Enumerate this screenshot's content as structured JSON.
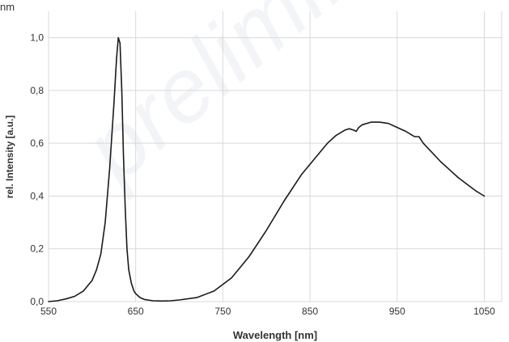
{
  "corner_text": "nm",
  "watermark": "preliminary",
  "chart_data": {
    "type": "line",
    "title": "",
    "xlabel": "Wavelength [nm]",
    "ylabel": "rel. Intensity [a.u.]",
    "xlim": [
      550,
      1070
    ],
    "ylim": [
      0,
      1.1
    ],
    "xticks": [
      550,
      650,
      750,
      850,
      950,
      1050
    ],
    "xtick_labels": [
      "550",
      "650",
      "750",
      "850",
      "950",
      "1050"
    ],
    "yticks": [
      0,
      0.2,
      0.4,
      0.6,
      0.8,
      1.0
    ],
    "ytick_labels": [
      "0,0",
      "0,2",
      "0,4",
      "0,6",
      "0,8",
      "1,0"
    ],
    "grid": true,
    "legend": "none",
    "line_color": "#1a1a1a",
    "series": [
      {
        "x": [
          550,
          560,
          570,
          580,
          590,
          600,
          605,
          610,
          615,
          620,
          625,
          628,
          630,
          632,
          634,
          636,
          638,
          640,
          642,
          645,
          648,
          650,
          655,
          660,
          670,
          680,
          690,
          700,
          720,
          740,
          760,
          780,
          800,
          820,
          840,
          860,
          870,
          880,
          890,
          895,
          900,
          903,
          906,
          910,
          920,
          930,
          940,
          950,
          960,
          970,
          975,
          980,
          990,
          1000,
          1010,
          1020,
          1030,
          1040,
          1050
        ],
        "y": [
          0,
          0.003,
          0.01,
          0.02,
          0.04,
          0.08,
          0.12,
          0.18,
          0.3,
          0.5,
          0.75,
          0.92,
          1.0,
          0.98,
          0.8,
          0.55,
          0.35,
          0.2,
          0.12,
          0.07,
          0.04,
          0.03,
          0.015,
          0.008,
          0.003,
          0.002,
          0.003,
          0.006,
          0.015,
          0.04,
          0.09,
          0.17,
          0.27,
          0.38,
          0.48,
          0.56,
          0.6,
          0.63,
          0.65,
          0.655,
          0.65,
          0.645,
          0.66,
          0.67,
          0.68,
          0.68,
          0.675,
          0.66,
          0.645,
          0.625,
          0.625,
          0.6,
          0.565,
          0.53,
          0.5,
          0.47,
          0.445,
          0.42,
          0.4
        ]
      }
    ]
  }
}
